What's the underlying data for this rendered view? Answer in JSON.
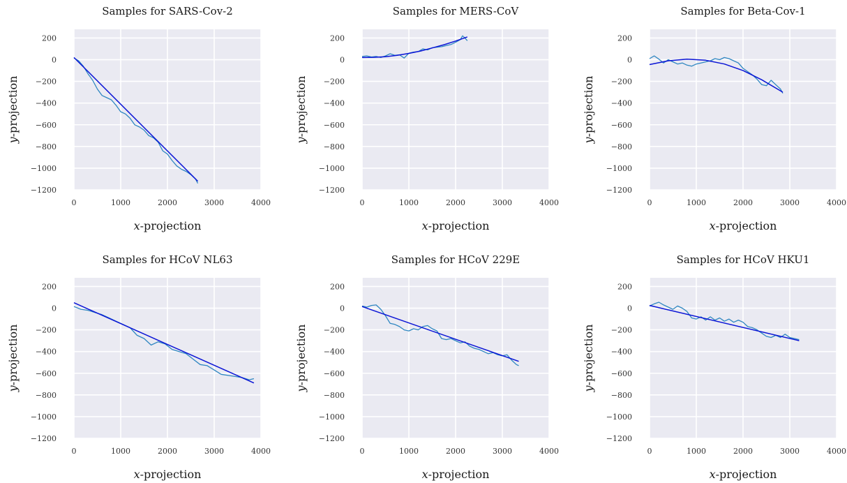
{
  "figure": {
    "style": {
      "panel_bg": "#eaeaf2",
      "grid_color": "#ffffff",
      "sample_color": "#2e86c1",
      "fit_color": "#0a14d6"
    }
  },
  "chart_data": [
    {
      "type": "line",
      "title": "Samples for SARS-Cov-2",
      "xlabel_var": "x",
      "xlabel_rest": "-projection",
      "ylabel_var": "y",
      "ylabel_rest": "-projection",
      "xlim": [
        0,
        4000
      ],
      "ylim": [
        -1200,
        280
      ],
      "xticks": [
        "0",
        "1000",
        "2000",
        "3000",
        "4000"
      ],
      "yticks": [
        "200",
        "0",
        "−200",
        "−400",
        "−600",
        "−800",
        "−1000",
        "−1200"
      ],
      "grid": true,
      "series": [
        {
          "role": "samples",
          "x": [
            0,
            100,
            200,
            300,
            400,
            500,
            600,
            700,
            800,
            900,
            1000,
            1100,
            1200,
            1300,
            1400,
            1500,
            1600,
            1700,
            1800,
            1900,
            2000,
            2100,
            2200,
            2300,
            2400,
            2500,
            2600,
            2650
          ],
          "y": [
            15,
            -10,
            -60,
            -130,
            -190,
            -270,
            -330,
            -350,
            -370,
            -420,
            -480,
            -500,
            -540,
            -600,
            -620,
            -650,
            -700,
            -720,
            -760,
            -840,
            -870,
            -930,
            -980,
            -1010,
            -1030,
            -1060,
            -1100,
            -1140
          ]
        },
        {
          "role": "fit",
          "x": [
            0,
            2650
          ],
          "y": [
            20,
            -1120
          ]
        }
      ]
    },
    {
      "type": "line",
      "title": "Samples for MERS-CoV",
      "xlabel_var": "x",
      "xlabel_rest": "-projection",
      "ylabel_var": "y",
      "ylabel_rest": "-projection",
      "xlim": [
        0,
        4000
      ],
      "ylim": [
        -1200,
        280
      ],
      "xticks": [
        "0",
        "1000",
        "2000",
        "3000",
        "4000"
      ],
      "yticks": [
        "200",
        "0",
        "−200",
        "−400",
        "−600",
        "−800",
        "−1000",
        "−1200"
      ],
      "grid": true,
      "series": [
        {
          "role": "samples",
          "x": [
            0,
            100,
            200,
            300,
            400,
            500,
            600,
            700,
            800,
            900,
            1000,
            1100,
            1200,
            1300,
            1400,
            1500,
            1600,
            1700,
            1800,
            1900,
            2000,
            2100,
            2150,
            2200,
            2250
          ],
          "y": [
            30,
            35,
            25,
            30,
            20,
            35,
            55,
            40,
            45,
            15,
            60,
            70,
            75,
            100,
            90,
            110,
            115,
            120,
            130,
            140,
            160,
            185,
            220,
            200,
            175
          ]
        },
        {
          "role": "fit",
          "x": [
            0,
            250,
            500,
            750,
            1000,
            1250,
            1500,
            1750,
            2000,
            2250
          ],
          "y": [
            20,
            22,
            28,
            40,
            58,
            80,
            108,
            138,
            172,
            210
          ]
        }
      ]
    },
    {
      "type": "line",
      "title": "Samples for Beta-Cov-1",
      "xlabel_var": "x",
      "xlabel_rest": "-projection",
      "ylabel_var": "y",
      "ylabel_rest": "-projection",
      "xlim": [
        0,
        4000
      ],
      "ylim": [
        -1200,
        280
      ],
      "xticks": [
        "0",
        "1000",
        "2000",
        "3000",
        "4000"
      ],
      "yticks": [
        "200",
        "0",
        "−200",
        "−400",
        "−600",
        "−800",
        "−1000",
        "−1200"
      ],
      "grid": true,
      "series": [
        {
          "role": "samples",
          "x": [
            0,
            100,
            200,
            300,
            400,
            500,
            600,
            700,
            800,
            900,
            1000,
            1100,
            1200,
            1300,
            1400,
            1500,
            1600,
            1700,
            1800,
            1900,
            2000,
            2100,
            2200,
            2300,
            2400,
            2500,
            2600,
            2700,
            2800,
            2850
          ],
          "y": [
            10,
            35,
            5,
            -30,
            0,
            -20,
            -40,
            -30,
            -50,
            -60,
            -40,
            -30,
            -20,
            -10,
            10,
            0,
            20,
            10,
            -10,
            -30,
            -80,
            -110,
            -140,
            -180,
            -230,
            -240,
            -190,
            -230,
            -270,
            -310
          ]
        },
        {
          "role": "fit",
          "x": [
            0,
            400,
            800,
            1200,
            1600,
            2000,
            2400,
            2850
          ],
          "y": [
            -45,
            -10,
            5,
            -5,
            -40,
            -100,
            -185,
            -300
          ]
        }
      ]
    },
    {
      "type": "line",
      "title": "Samples for HCoV NL63",
      "xlabel_var": "x",
      "xlabel_rest": "-projection",
      "ylabel_var": "y",
      "ylabel_rest": "-projection",
      "xlim": [
        0,
        4000
      ],
      "ylim": [
        -1200,
        280
      ],
      "xticks": [
        "0",
        "1000",
        "2000",
        "3000",
        "4000"
      ],
      "yticks": [
        "200",
        "0",
        "−200",
        "−400",
        "−600",
        "−800",
        "−1000",
        "−1200"
      ],
      "grid": true,
      "series": [
        {
          "role": "samples",
          "x": [
            0,
            150,
            300,
            450,
            600,
            750,
            900,
            1050,
            1200,
            1350,
            1500,
            1650,
            1800,
            1950,
            2100,
            2250,
            2400,
            2550,
            2700,
            2850,
            3000,
            3150,
            3300,
            3450,
            3600,
            3750,
            3850
          ],
          "y": [
            15,
            -10,
            -20,
            -40,
            -60,
            -90,
            -120,
            -150,
            -180,
            -250,
            -280,
            -340,
            -310,
            -330,
            -380,
            -400,
            -420,
            -470,
            -520,
            -530,
            -570,
            -610,
            -620,
            -630,
            -640,
            -660,
            -650
          ]
        },
        {
          "role": "fit",
          "x": [
            0,
            3850
          ],
          "y": [
            50,
            -690
          ]
        }
      ]
    },
    {
      "type": "line",
      "title": "Samples for HCoV 229E",
      "xlabel_var": "x",
      "xlabel_rest": "-projection",
      "ylabel_var": "y",
      "ylabel_rest": "-projection",
      "xlim": [
        0,
        4000
      ],
      "ylim": [
        -1200,
        280
      ],
      "xticks": [
        "0",
        "1000",
        "2000",
        "3000",
        "4000"
      ],
      "yticks": [
        "200",
        "0",
        "−200",
        "−400",
        "−600",
        "−800",
        "−1000",
        "−1200"
      ],
      "grid": true,
      "series": [
        {
          "role": "samples",
          "x": [
            0,
            100,
            200,
            300,
            400,
            500,
            600,
            700,
            800,
            900,
            1000,
            1100,
            1200,
            1300,
            1400,
            1500,
            1600,
            1700,
            1800,
            1900,
            2000,
            2100,
            2200,
            2300,
            2400,
            2500,
            2600,
            2700,
            2800,
            2900,
            3000,
            3100,
            3200,
            3300,
            3350
          ],
          "y": [
            20,
            10,
            25,
            30,
            -10,
            -70,
            -140,
            -150,
            -170,
            -200,
            -210,
            -190,
            -200,
            -170,
            -160,
            -190,
            -210,
            -280,
            -290,
            -280,
            -300,
            -320,
            -310,
            -350,
            -370,
            -380,
            -400,
            -420,
            -410,
            -430,
            -440,
            -430,
            -480,
            -520,
            -530
          ]
        },
        {
          "role": "fit",
          "x": [
            0,
            3350
          ],
          "y": [
            15,
            -490
          ]
        }
      ]
    },
    {
      "type": "line",
      "title": "Samples for HCoV HKU1",
      "xlabel_var": "x",
      "xlabel_rest": "-projection",
      "ylabel_var": "y",
      "ylabel_rest": "-projection",
      "xlim": [
        0,
        4000
      ],
      "ylim": [
        -1200,
        280
      ],
      "xticks": [
        "0",
        "1000",
        "2000",
        "3000",
        "4000"
      ],
      "yticks": [
        "200",
        "0",
        "−200",
        "−400",
        "−600",
        "−800",
        "−1000",
        "−1200"
      ],
      "grid": true,
      "series": [
        {
          "role": "samples",
          "x": [
            0,
            100,
            200,
            300,
            400,
            500,
            600,
            700,
            800,
            900,
            1000,
            1100,
            1200,
            1300,
            1400,
            1500,
            1600,
            1700,
            1800,
            1900,
            2000,
            2100,
            2200,
            2300,
            2400,
            2500,
            2600,
            2700,
            2800,
            2900,
            3000,
            3100,
            3200
          ],
          "y": [
            20,
            40,
            55,
            30,
            10,
            -10,
            20,
            0,
            -30,
            -90,
            -100,
            -80,
            -110,
            -80,
            -110,
            -90,
            -120,
            -100,
            -130,
            -110,
            -130,
            -170,
            -180,
            -200,
            -230,
            -260,
            -270,
            -250,
            -270,
            -240,
            -270,
            -280,
            -290
          ]
        },
        {
          "role": "fit",
          "x": [
            0,
            3200
          ],
          "y": [
            25,
            -300
          ]
        }
      ]
    }
  ]
}
